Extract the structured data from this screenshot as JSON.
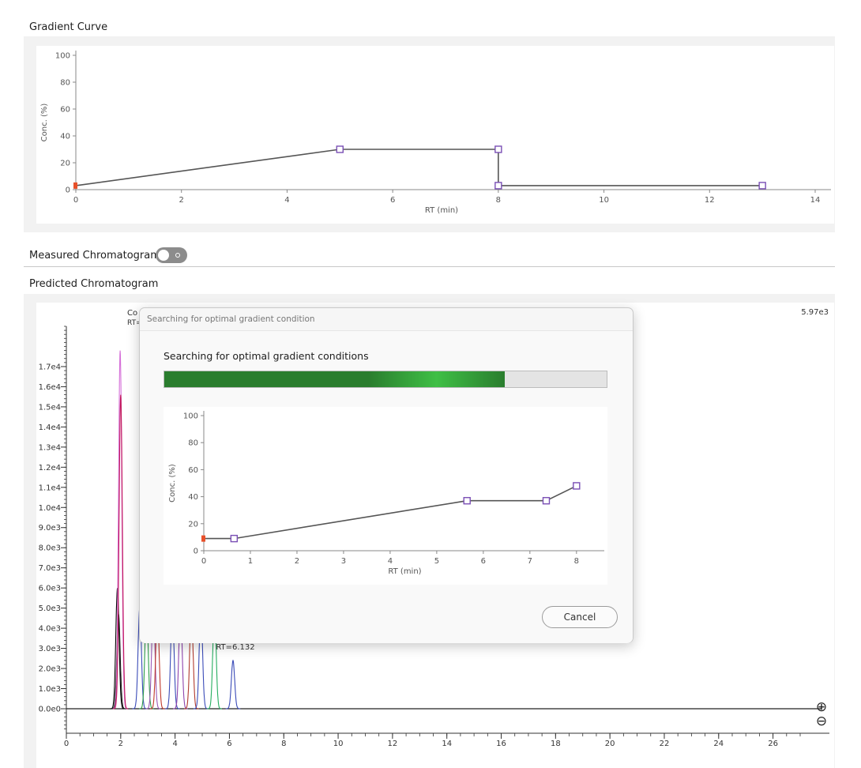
{
  "gradient_curve": {
    "title": "Gradient Curve",
    "chart_data": {
      "type": "line",
      "xlabel": "RT (min)",
      "ylabel": "Conc. (%)",
      "xlim": [
        0,
        14
      ],
      "ylim": [
        0,
        100
      ],
      "xticks": [
        0,
        2,
        4,
        6,
        8,
        10,
        12,
        14
      ],
      "yticks": [
        0,
        20,
        40,
        60,
        80,
        100
      ],
      "points": [
        [
          0,
          3
        ],
        [
          5,
          30
        ],
        [
          8,
          30
        ],
        [
          8,
          3
        ],
        [
          13,
          3
        ]
      ],
      "line_color": "#555555",
      "marker_color": "#7a4fb5",
      "start_marker_color": "#e8502a"
    }
  },
  "measured_chromatogram": {
    "label": "Measured Chromatogram",
    "toggle_on": false
  },
  "predicted_chromatogram": {
    "title": "Predicted Chromatogram",
    "max_label": "5.97e3",
    "partial_labels": [
      "Co",
      "RT="
    ],
    "chart_data": {
      "type": "line",
      "xlim": [
        0,
        27
      ],
      "ylim": [
        0,
        19000
      ],
      "xticks": [
        0,
        2,
        4,
        6,
        8,
        10,
        12,
        14,
        16,
        18,
        20,
        22,
        24,
        26
      ],
      "yticks": [
        0,
        1000,
        2000,
        3000,
        4000,
        5000,
        6000,
        7000,
        8000,
        9000,
        10000,
        11000,
        12000,
        13000,
        14000,
        15000,
        16000,
        17000
      ],
      "ytick_labels": [
        "0.0e0",
        "1.0e3",
        "2.0e3",
        "3.0e3",
        "4.0e3",
        "5.0e3",
        "6.0e3",
        "7.0e3",
        "8.0e3",
        "9.0e3",
        "1.0e4",
        "1.1e4",
        "1.2e4",
        "1.3e4",
        "1.4e4",
        "1.5e4",
        "1.6e4",
        "1.7e4"
      ],
      "peaks": [
        {
          "rt": 1.88,
          "height": 6000,
          "color": "#000000"
        },
        {
          "rt": 1.92,
          "height": 4700,
          "color": "#222222"
        },
        {
          "rt": 1.98,
          "height": 17800,
          "color": "#d56fd8"
        },
        {
          "rt": 2.0,
          "height": 15600,
          "color": "#c2185b"
        },
        {
          "rt": 2.7,
          "height": 5000,
          "color": "#3a4bb8"
        },
        {
          "rt": 2.95,
          "height": 5000,
          "color": "#2e9e4a"
        },
        {
          "rt": 3.2,
          "height": 5000,
          "color": "#9b59b6"
        },
        {
          "rt": 3.35,
          "height": 5000,
          "color": "#c0392b"
        },
        {
          "rt": 3.9,
          "height": 5000,
          "color": "#3a4bb8"
        },
        {
          "rt": 4.2,
          "height": 5000,
          "color": "#8e44ad"
        },
        {
          "rt": 4.6,
          "height": 5000,
          "color": "#b03a2e"
        },
        {
          "rt": 4.95,
          "height": 5000,
          "color": "#3a4bb8"
        },
        {
          "rt": 5.45,
          "height": 5000,
          "color": "#27ae60"
        },
        {
          "rt": 6.132,
          "height": 2400,
          "color": "#3a4bb8"
        }
      ],
      "annotations": [
        {
          "rt": 6.132,
          "label": "RT=6.132"
        }
      ]
    },
    "zoom_in_label": "⊕",
    "zoom_out_label": "⊖"
  },
  "dialog": {
    "title": "Searching for optimal gradient condition",
    "message": "Searching for optimal gradient conditions",
    "progress_fraction": 0.77,
    "cancel_label": "Cancel",
    "chart_data": {
      "type": "line",
      "xlabel": "RT (min)",
      "ylabel": "Conc. (%)",
      "xlim": [
        0,
        8.8
      ],
      "ylim": [
        0,
        100
      ],
      "xticks": [
        0,
        1,
        2,
        3,
        4,
        5,
        6,
        7,
        8
      ],
      "yticks": [
        0,
        20,
        40,
        60,
        80,
        100
      ],
      "points": [
        [
          0,
          9
        ],
        [
          0.65,
          9
        ],
        [
          5.65,
          37
        ],
        [
          7.35,
          37
        ],
        [
          8.0,
          48
        ]
      ],
      "line_color": "#555555",
      "marker_color": "#7a4fb5",
      "start_marker_color": "#e8502a"
    }
  }
}
